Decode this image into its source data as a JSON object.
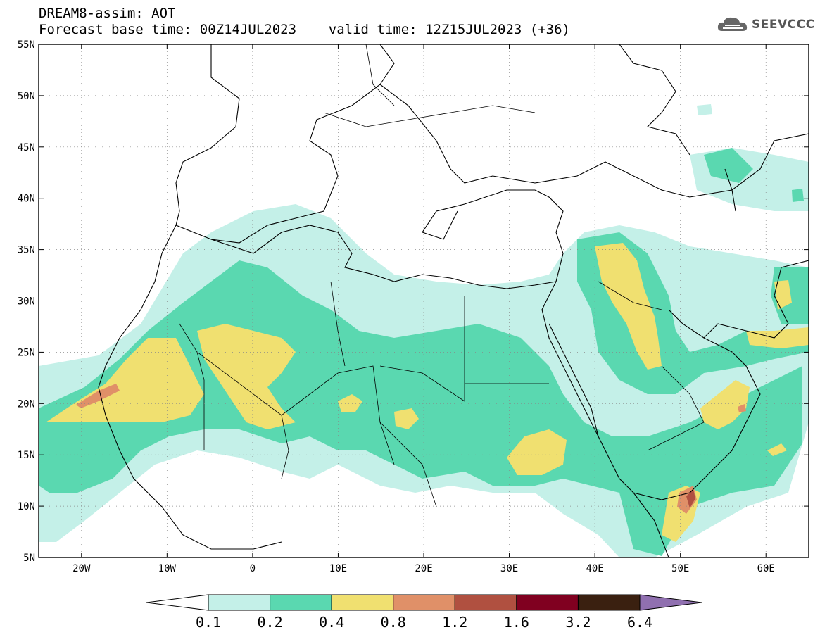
{
  "header": {
    "title_line1": "DREAM8-assim: AOT",
    "title_line2": "Forecast base time: 00Z14JUL2023    valid time: 12Z15JUL2023 (+36)",
    "logo_text": "SEEVCCC"
  },
  "map": {
    "lon_range": [
      -25,
      65
    ],
    "lat_range": [
      5,
      55
    ],
    "lat_ticks": [
      "55N",
      "50N",
      "45N",
      "40N",
      "35N",
      "30N",
      "25N",
      "20N",
      "15N",
      "10N",
      "5N"
    ],
    "lon_ticks": [
      "20W",
      "10W",
      "0",
      "10E",
      "20E",
      "30E",
      "40E",
      "50E",
      "60E"
    ]
  },
  "colorbar": {
    "labels": [
      "0.1",
      "0.2",
      "0.4",
      "0.8",
      "1.2",
      "1.6",
      "3.2",
      "6.4"
    ],
    "colors": [
      "#ffffff",
      "#c4f0e8",
      "#5ad8b0",
      "#f0e070",
      "#e09068",
      "#b05040",
      "#800020",
      "#3a2010",
      "#9070b0"
    ]
  }
}
